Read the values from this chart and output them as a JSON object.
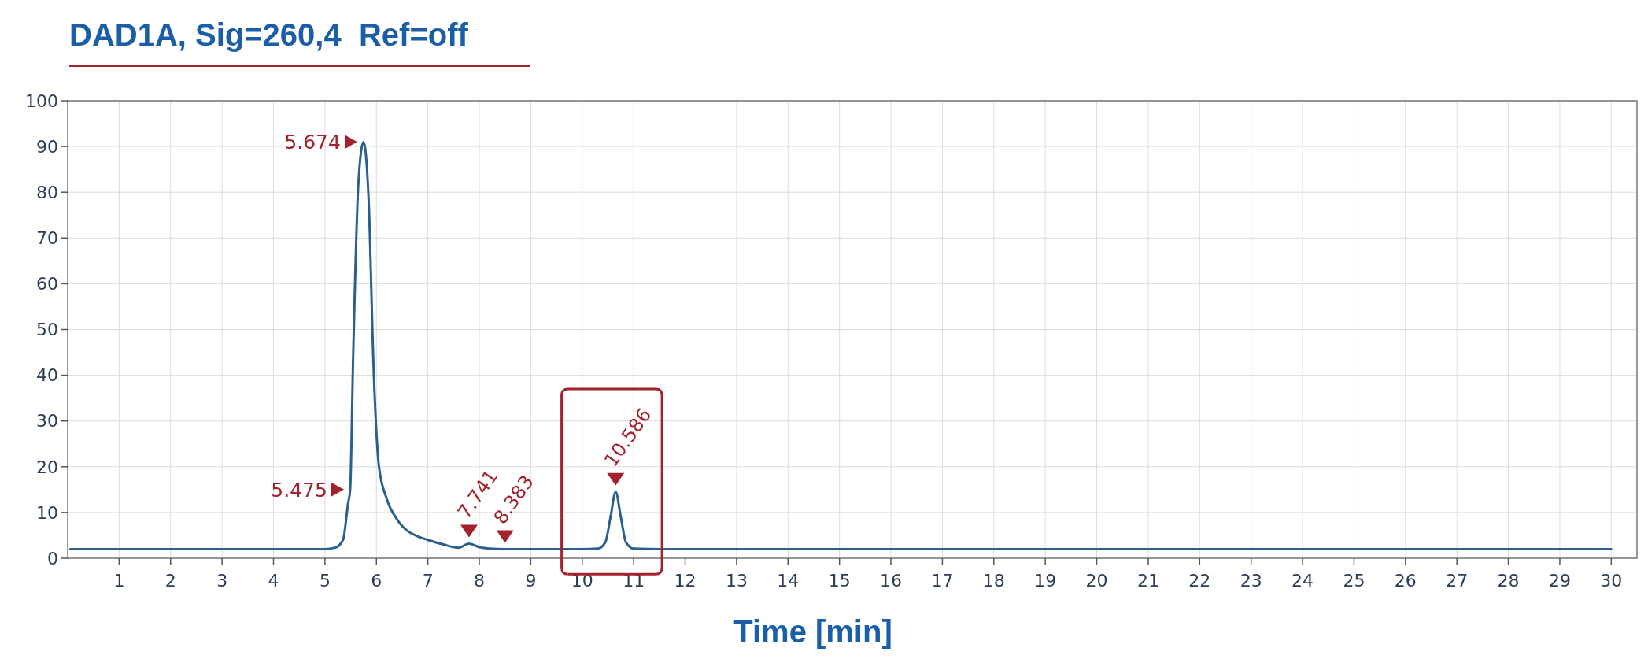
{
  "chart_data": {
    "type": "line",
    "title": "DAD1A, Sig=260,4  Ref=off",
    "xlabel": "Time [min]",
    "x": [
      0.05,
      1,
      2,
      3,
      4,
      5,
      5.2,
      5.35,
      5.45,
      5.49,
      5.55,
      5.65,
      5.75,
      5.85,
      5.95,
      6.05,
      6.2,
      6.4,
      6.6,
      6.8,
      7.0,
      7.3,
      7.6,
      7.8,
      8.0,
      8.2,
      8.5,
      9,
      10,
      10.3,
      10.45,
      10.55,
      10.65,
      10.75,
      10.85,
      11,
      11.5,
      12,
      15,
      20,
      25,
      30
    ],
    "series": [
      {
        "color": "#2b5f8e",
        "values": [
          2,
          2,
          2,
          2,
          2,
          2,
          2.3,
          4,
          12,
          15,
          45,
          82,
          91,
          78,
          40,
          20,
          13,
          8.5,
          6,
          4.8,
          4,
          3,
          2.3,
          3.2,
          2.4,
          2.1,
          2,
          2,
          2,
          2.1,
          3.5,
          9,
          14.5,
          9,
          3.5,
          2.1,
          2,
          2,
          2,
          2,
          2,
          2
        ]
      }
    ],
    "annotations": [
      {
        "text": "5.674",
        "x": 5.75,
        "y": 91
      },
      {
        "text": "5.475",
        "x": 5.49,
        "y": 15
      },
      {
        "text": "7.741",
        "x": 7.8,
        "y": 3.2
      },
      {
        "text": "8.383",
        "x": 8.5,
        "y": 2
      },
      {
        "text": "10.586",
        "x": 10.65,
        "y": 14.5
      }
    ],
    "xlim": [
      0,
      30.5
    ],
    "xticks": [
      1,
      2,
      3,
      4,
      5,
      6,
      7,
      8,
      9,
      10,
      11,
      12,
      13,
      14,
      15,
      16,
      17,
      18,
      19,
      20,
      21,
      22,
      23,
      24,
      25,
      26,
      27,
      28,
      29,
      30
    ],
    "ylim": [
      0,
      100
    ],
    "yticks": [
      0,
      10,
      20,
      30,
      40,
      50,
      60,
      70,
      80,
      90,
      100
    ],
    "grid": true,
    "marker": "none",
    "line_style": "solid"
  }
}
